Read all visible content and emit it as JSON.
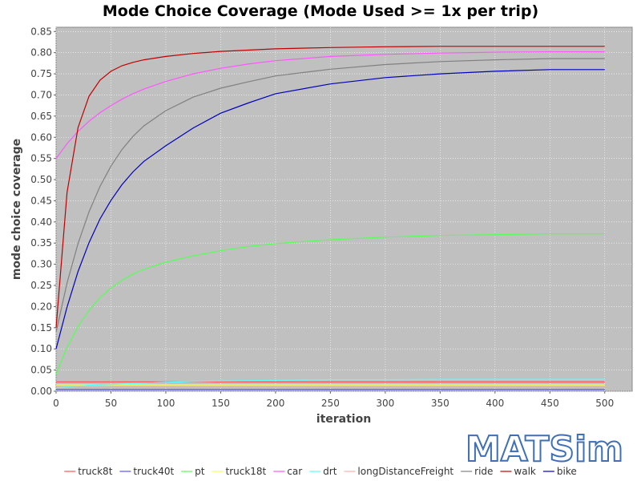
{
  "chart_data": {
    "type": "line",
    "title": "Mode Choice Coverage (Mode Used >= 1x per trip)",
    "xlabel": "iteration",
    "ylabel": "mode choice coverage",
    "xlim": [
      0,
      525
    ],
    "ylim": [
      0,
      0.86
    ],
    "xticks": [
      0,
      50,
      100,
      150,
      200,
      250,
      300,
      350,
      400,
      450,
      500
    ],
    "yticks": [
      0.0,
      0.05,
      0.1,
      0.15,
      0.2,
      0.25,
      0.3,
      0.35,
      0.4,
      0.45,
      0.5,
      0.55,
      0.6,
      0.65,
      0.7,
      0.75,
      0.8,
      0.85
    ],
    "grid": true,
    "legend_position": "bottom",
    "plot_background": "#c0c0c0",
    "x": [
      0,
      10,
      20,
      30,
      40,
      50,
      60,
      70,
      80,
      100,
      125,
      150,
      175,
      200,
      250,
      300,
      350,
      400,
      450,
      500
    ],
    "series": [
      {
        "name": "truck8t",
        "color": "#ff5555",
        "values": [
          0.022,
          0.022,
          0.022,
          0.022,
          0.022,
          0.022,
          0.022,
          0.022,
          0.022,
          0.022,
          0.022,
          0.022,
          0.022,
          0.022,
          0.022,
          0.022,
          0.022,
          0.022,
          0.022,
          0.022
        ]
      },
      {
        "name": "truck40t",
        "color": "#5555ff",
        "values": [
          0.004,
          0.004,
          0.004,
          0.004,
          0.004,
          0.004,
          0.004,
          0.004,
          0.004,
          0.004,
          0.004,
          0.004,
          0.004,
          0.004,
          0.004,
          0.004,
          0.004,
          0.004,
          0.004,
          0.004
        ]
      },
      {
        "name": "pt",
        "color": "#55ff55",
        "values": [
          0.04,
          0.104,
          0.153,
          0.191,
          0.221,
          0.244,
          0.262,
          0.277,
          0.288,
          0.305,
          0.32,
          0.332,
          0.342,
          0.349,
          0.358,
          0.364,
          0.368,
          0.37,
          0.372,
          0.372
        ]
      },
      {
        "name": "truck18t",
        "color": "#ffff55",
        "values": [
          0.015,
          0.015,
          0.015,
          0.015,
          0.015,
          0.015,
          0.015,
          0.015,
          0.015,
          0.015,
          0.015,
          0.015,
          0.015,
          0.015,
          0.015,
          0.015,
          0.015,
          0.015,
          0.015,
          0.015
        ]
      },
      {
        "name": "car",
        "color": "#ff55ff",
        "values": [
          0.55,
          0.585,
          0.614,
          0.638,
          0.658,
          0.675,
          0.69,
          0.703,
          0.714,
          0.732,
          0.75,
          0.763,
          0.773,
          0.781,
          0.791,
          0.796,
          0.799,
          0.801,
          0.802,
          0.802
        ]
      },
      {
        "name": "drt",
        "color": "#55ffff",
        "values": [
          0.008,
          0.01,
          0.012,
          0.014,
          0.015,
          0.016,
          0.017,
          0.018,
          0.019,
          0.021,
          0.023,
          0.024,
          0.025,
          0.026,
          0.027,
          0.027,
          0.028,
          0.028,
          0.028,
          0.028
        ]
      },
      {
        "name": "longDistanceFreight",
        "color": "#ffafaf",
        "values": [
          0.012,
          0.012,
          0.012,
          0.012,
          0.012,
          0.012,
          0.012,
          0.012,
          0.012,
          0.012,
          0.012,
          0.012,
          0.012,
          0.012,
          0.012,
          0.012,
          0.012,
          0.012,
          0.012,
          0.012
        ]
      },
      {
        "name": "ride",
        "color": "#808080",
        "values": [
          0.14,
          0.256,
          0.349,
          0.424,
          0.484,
          0.532,
          0.571,
          0.602,
          0.627,
          0.663,
          0.695,
          0.716,
          0.731,
          0.745,
          0.761,
          0.772,
          0.779,
          0.783,
          0.786,
          0.786
        ]
      },
      {
        "name": "walk",
        "color": "#c00000",
        "values": [
          0.15,
          0.47,
          0.623,
          0.697,
          0.735,
          0.756,
          0.769,
          0.777,
          0.783,
          0.791,
          0.798,
          0.803,
          0.806,
          0.809,
          0.812,
          0.814,
          0.815,
          0.815,
          0.815,
          0.815
        ]
      },
      {
        "name": "bike",
        "color": "#0000c0",
        "values": [
          0.1,
          0.199,
          0.283,
          0.351,
          0.407,
          0.451,
          0.488,
          0.518,
          0.543,
          0.58,
          0.622,
          0.657,
          0.681,
          0.703,
          0.726,
          0.741,
          0.75,
          0.756,
          0.76,
          0.76
        ]
      }
    ]
  },
  "logo": {
    "text": "MATSim",
    "color": "#3f6fb5"
  }
}
